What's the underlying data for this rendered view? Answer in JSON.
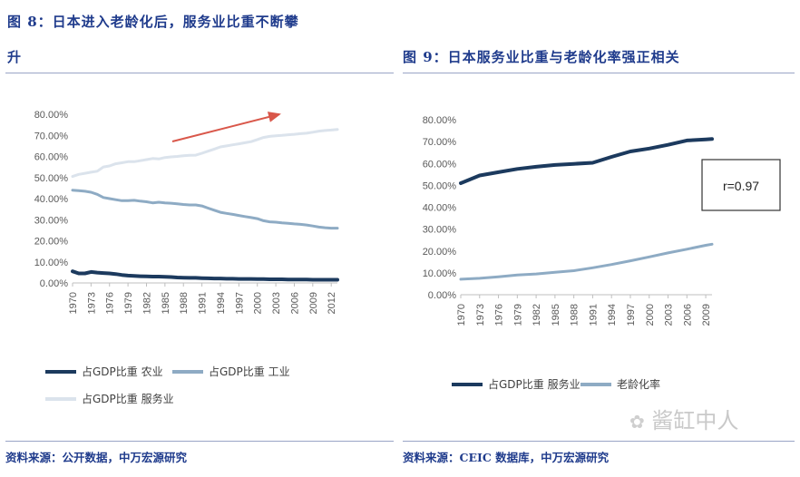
{
  "page": {
    "fig8_title_line1": "图 8：日本进入老龄化后，服务业比重不断攀",
    "fig8_title_line2": "升",
    "fig9_title": "图 9：日本服务业比重与老龄化率强正相关",
    "fig8_source": "资料来源：公开数据，中万宏源研究",
    "fig9_source": "资料来源：CEIC 数据库，中万宏源研究",
    "watermark": "酱缸中人"
  },
  "chart_data": [
    {
      "type": "line",
      "title": "图 8：日本进入老龄化后，服务业比重不断攀升",
      "xlabel": "",
      "ylabel": "",
      "ylim": [
        0,
        80
      ],
      "y_ticks": [
        "80.00%",
        "70.00%",
        "60.00%",
        "50.00%",
        "40.00%",
        "30.00%",
        "20.00%",
        "10.00%",
        "0.00%"
      ],
      "x_range": [
        1970,
        2013
      ],
      "x_ticks": [
        "1970",
        "1973",
        "1976",
        "1979",
        "1982",
        "1985",
        "1988",
        "1991",
        "1994",
        "1997",
        "2000",
        "2003",
        "2006",
        "2009",
        "2012"
      ],
      "x": [
        1970,
        1971,
        1972,
        1973,
        1974,
        1975,
        1976,
        1977,
        1978,
        1979,
        1980,
        1981,
        1982,
        1983,
        1984,
        1985,
        1986,
        1987,
        1988,
        1989,
        1990,
        1991,
        1992,
        1993,
        1994,
        1995,
        1996,
        1997,
        1998,
        1999,
        2000,
        2001,
        2002,
        2003,
        2004,
        2005,
        2006,
        2007,
        2008,
        2009,
        2010,
        2011,
        2012,
        2013
      ],
      "series": [
        {
          "name": "占GDP比重 农业",
          "color": "#1c3a5e",
          "values": [
            5.5,
            4.5,
            4.5,
            5.2,
            4.9,
            4.7,
            4.5,
            4.2,
            3.8,
            3.5,
            3.3,
            3.2,
            3.1,
            3.0,
            3.0,
            2.9,
            2.8,
            2.6,
            2.5,
            2.4,
            2.4,
            2.3,
            2.2,
            2.1,
            2.1,
            2.0,
            2.0,
            1.9,
            1.9,
            1.9,
            1.8,
            1.8,
            1.7,
            1.7,
            1.7,
            1.6,
            1.6,
            1.6,
            1.6,
            1.5,
            1.5,
            1.5,
            1.5,
            1.5
          ]
        },
        {
          "name": "占GDP比重 工业",
          "color": "#8eabc4",
          "values": [
            44.0,
            43.8,
            43.5,
            43.0,
            42.0,
            40.5,
            40.0,
            39.5,
            39.0,
            39.0,
            39.2,
            38.8,
            38.5,
            38.0,
            38.3,
            38.0,
            37.8,
            37.5,
            37.2,
            37.0,
            37.0,
            36.5,
            35.5,
            34.5,
            33.5,
            33.0,
            32.5,
            32.0,
            31.5,
            31.0,
            30.5,
            29.5,
            29.0,
            28.8,
            28.5,
            28.3,
            28.0,
            27.8,
            27.5,
            27.0,
            26.5,
            26.2,
            26.0,
            26.0
          ]
        },
        {
          "name": "占GDP比重 服务业",
          "color": "#dbe3ec",
          "values": [
            50.5,
            51.5,
            52.0,
            52.5,
            53.0,
            55.0,
            55.5,
            56.5,
            57.0,
            57.5,
            57.5,
            58.0,
            58.5,
            59.0,
            58.8,
            59.5,
            59.8,
            60.0,
            60.3,
            60.5,
            60.6,
            61.5,
            62.5,
            63.5,
            64.5,
            65.0,
            65.5,
            66.0,
            66.5,
            67.0,
            68.0,
            69.0,
            69.5,
            69.8,
            70.0,
            70.3,
            70.5,
            70.8,
            71.0,
            71.5,
            72.0,
            72.3,
            72.5,
            72.8
          ]
        }
      ],
      "annotation": "up-trend-arrow",
      "legend": [
        "占GDP比重 农业",
        "占GDP比重 工业",
        "占GDP比重 服务业"
      ],
      "legend_position": "bottom"
    },
    {
      "type": "line",
      "title": "图 9：日本服务业比重与老龄化率强正相关",
      "xlabel": "",
      "ylabel": "",
      "ylim": [
        0,
        80
      ],
      "y_ticks": [
        "80.00%",
        "70.00%",
        "60.00%",
        "50.00%",
        "40.00%",
        "30.00%",
        "20.00%",
        "10.00%",
        "0.00%"
      ],
      "x_range": [
        1970,
        2010
      ],
      "x_ticks": [
        "1970",
        "1973",
        "1976",
        "1979",
        "1982",
        "1985",
        "1988",
        "1991",
        "1994",
        "1997",
        "2000",
        "2003",
        "2006",
        "2009"
      ],
      "x": [
        1970,
        1973,
        1976,
        1979,
        1982,
        1985,
        1988,
        1991,
        1994,
        1997,
        2000,
        2003,
        2006,
        2009,
        2010
      ],
      "series": [
        {
          "name": "占GDP比重 服务业",
          "color": "#1c3a5e",
          "values": [
            51.0,
            54.5,
            56.0,
            57.5,
            58.5,
            59.3,
            59.8,
            60.3,
            63.0,
            65.5,
            66.8,
            68.5,
            70.5,
            71.0,
            71.2
          ]
        },
        {
          "name": "老龄化率",
          "color": "#8eabc4",
          "values": [
            7.1,
            7.5,
            8.2,
            9.0,
            9.5,
            10.3,
            11.0,
            12.3,
            13.8,
            15.5,
            17.3,
            19.1,
            20.8,
            22.6,
            23.1
          ]
        }
      ],
      "annotation_text": "r=0.97",
      "legend": [
        "占GDP比重 服务业",
        "老龄化率"
      ],
      "legend_position": "bottom"
    }
  ]
}
